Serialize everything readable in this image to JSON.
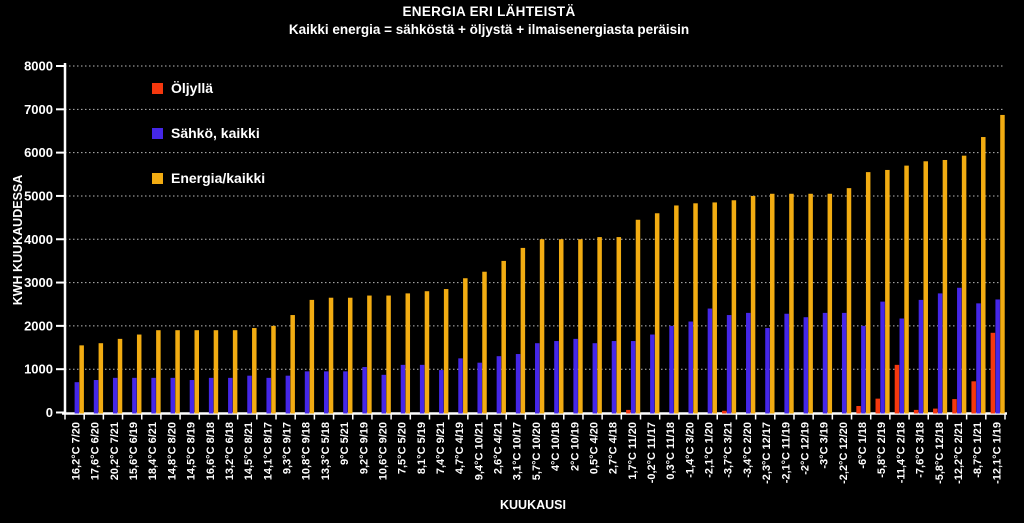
{
  "title": "ENERGIA ERI LÄHTEISTÄ",
  "subtitle": "Kaikki energia = sähköstä + öljystä + ilmaisenergiasta peräisin",
  "legend": {
    "items": [
      {
        "label": "Öljyllä",
        "color": "#F5380E"
      },
      {
        "label": "Sähkö, kaikki",
        "color": "#4527E8"
      },
      {
        "label": "Energia/kaikki",
        "color": "#F2AC12"
      }
    ]
  },
  "chart_data": {
    "type": "bar",
    "title": "ENERGIA ERI LÄHTEISTÄ",
    "subtitle": "Kaikki energia = sähköstä + öljystä + ilmaisenergiasta peräisin",
    "xlabel": "KUUKAUSI",
    "ylabel": "KWH KUUKAUDESSA",
    "ylim": [
      0,
      8000
    ],
    "ytick_step": 1000,
    "grid": true,
    "grid_style": "dotted",
    "legend_position": "top-left-inside",
    "background": "#000000",
    "text_color": "#FFFFFF",
    "categories": [
      "16,2°C 7/20",
      "17,6°C 6/20",
      "20,2°C 7/21",
      "15,6°C 6/19",
      "18,4°C 6/21",
      "14,8°C 8/20",
      "14,5°C 8/19",
      "16,6°C 8/18",
      "13,2°C 6/18",
      "14,5°C 8/21",
      "14,1°C 8/17",
      "9,3°C 9/17",
      "10,8°C 9/18",
      "13,3°C 5/18",
      "9°C 5/21",
      "9,2°C 9/19",
      "10,6°C 9/20",
      "7,5°C 5/20",
      "8,1°C 5/19",
      "7,4°C 9/21",
      "4,7°C 4/19",
      "9,4°C 10/21",
      "2,6°C 4/21",
      "3,1°C 10/17",
      "5,7°C 10/20",
      "4°C 10/18",
      "2°C 10/19",
      "0,5°C 4/20",
      "2,7°C 4/18",
      "1,7°C 11/20",
      "-0,2°C 11/17",
      "0,3°C 11/18",
      "-1,4°C 3/20",
      "-2,1°C 1/20",
      "-3,7°C 3/21",
      "-3,4°C 2/20",
      "-2,3°C 12/17",
      "-2,1°C 11/19",
      "-2°C 12/19",
      "-3°C 3/19",
      "-2,2°C 12/20",
      "-6°C 1/18",
      "-5,8°C 2/19",
      "-11,4°C 2/18",
      "-7,6°C 3/18",
      "-5,8°C 12/18",
      "-12,2°C 2/21",
      "-8,7°C 1/21",
      "-12,1°C 1/19"
    ],
    "series": [
      {
        "name": "Öljyllä",
        "color": "#F5380E",
        "values": [
          0,
          0,
          0,
          0,
          0,
          0,
          0,
          0,
          0,
          0,
          0,
          0,
          0,
          0,
          0,
          0,
          0,
          0,
          0,
          0,
          0,
          0,
          0,
          0,
          0,
          0,
          0,
          0,
          0,
          60,
          0,
          0,
          0,
          0,
          40,
          0,
          0,
          0,
          0,
          0,
          0,
          150,
          320,
          1100,
          60,
          90,
          310,
          720,
          1840
        ]
      },
      {
        "name": "Sähkö, kaikki",
        "color": "#4527E8",
        "values": [
          700,
          750,
          800,
          800,
          800,
          800,
          750,
          800,
          800,
          850,
          800,
          850,
          950,
          950,
          950,
          1050,
          870,
          1100,
          1100,
          980,
          1250,
          1150,
          1300,
          1350,
          1600,
          1650,
          1700,
          1600,
          1650,
          1650,
          1800,
          2000,
          2100,
          2400,
          2250,
          2300,
          1950,
          2280,
          2200,
          2300,
          2300,
          2000,
          2560,
          2170,
          2600,
          2750,
          2880,
          2520,
          2610
        ]
      },
      {
        "name": "Energia/kaikki",
        "color": "#F2AC12",
        "values": [
          1550,
          1600,
          1700,
          1800,
          1900,
          1900,
          1900,
          1900,
          1900,
          1950,
          2000,
          2250,
          2600,
          2650,
          2650,
          2700,
          2700,
          2750,
          2800,
          2850,
          3100,
          3250,
          3500,
          3800,
          4000,
          4000,
          4000,
          4050,
          4050,
          4450,
          4600,
          4780,
          4830,
          4850,
          4900,
          5000,
          5050,
          5050,
          5050,
          5050,
          5180,
          5550,
          5600,
          5700,
          5800,
          5830,
          5930,
          6360,
          6870
        ]
      }
    ]
  }
}
